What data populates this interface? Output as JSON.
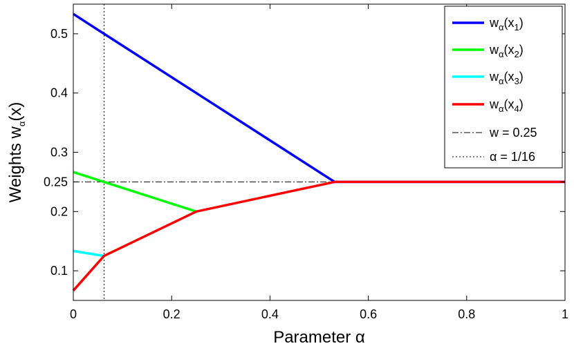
{
  "chart_data": {
    "type": "line",
    "xlabel": "Parameter α",
    "ylabel": "Weights w_α(x)",
    "xlim": [
      0,
      1
    ],
    "ylim": [
      0.05,
      0.55
    ],
    "xticks": [
      0,
      0.2,
      0.4,
      0.6,
      0.8,
      1
    ],
    "xtick_labels": [
      "0",
      "0.2",
      "0.4",
      "0.6",
      "0.8",
      "1"
    ],
    "yticks": [
      0.1,
      0.2,
      0.25,
      0.3,
      0.4,
      0.5
    ],
    "ytick_labels": [
      "0.1",
      "0.2",
      "0.25",
      "0.3",
      "0.4",
      "0.5"
    ],
    "grid": false,
    "legend_position": "top-right",
    "series": [
      {
        "name": "w_α(x_1)",
        "color": "#0000ff",
        "x": [
          0,
          0.0625,
          0.25,
          0.5313,
          1
        ],
        "y": [
          0.5335,
          0.5,
          0.4,
          0.25,
          0.25
        ]
      },
      {
        "name": "w_α(x_2)",
        "color": "#00ff00",
        "x": [
          0,
          0.0625,
          0.25
        ],
        "y": [
          0.2665,
          0.25,
          0.2
        ]
      },
      {
        "name": "w_α(x_3)",
        "color": "#00ffff",
        "x": [
          0,
          0.0625
        ],
        "y": [
          0.1335,
          0.125
        ]
      },
      {
        "name": "w_α(x_4)",
        "color": "#ff0000",
        "x": [
          0,
          0.0625,
          0.25,
          0.5313,
          1
        ],
        "y": [
          0.0665,
          0.125,
          0.2,
          0.25,
          0.25
        ]
      }
    ],
    "reference_lines": [
      {
        "label": "w = 0.25",
        "orientation": "horizontal",
        "value": 0.25,
        "style": "dash-dot",
        "color": "#000000"
      },
      {
        "label": "α = 1/16",
        "orientation": "vertical",
        "value": 0.0625,
        "style": "dotted",
        "color": "#000000"
      }
    ],
    "legend": [
      {
        "base": "w",
        "sub_alpha": "α",
        "paren_open": "(x",
        "sub_index": "1",
        "paren_close": ")",
        "color": "#0000ff",
        "style": "solid"
      },
      {
        "base": "w",
        "sub_alpha": "α",
        "paren_open": "(x",
        "sub_index": "2",
        "paren_close": ")",
        "color": "#00ff00",
        "style": "solid"
      },
      {
        "base": "w",
        "sub_alpha": "α",
        "paren_open": "(x",
        "sub_index": "3",
        "paren_close": ")",
        "color": "#00ffff",
        "style": "solid"
      },
      {
        "base": "w",
        "sub_alpha": "α",
        "paren_open": "(x",
        "sub_index": "4",
        "paren_close": ")",
        "color": "#ff0000",
        "style": "solid"
      },
      {
        "text": "w = 0.25",
        "color": "#000000",
        "style": "dash-dot"
      },
      {
        "text": "α = 1/16",
        "color": "#000000",
        "style": "dotted"
      }
    ]
  }
}
